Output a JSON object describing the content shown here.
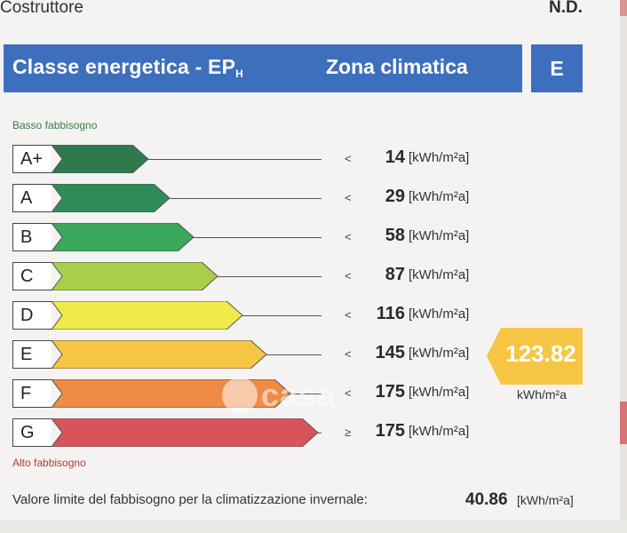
{
  "top": {
    "label": "Costruttore",
    "value": "N.D."
  },
  "header": {
    "title": "Classe energetica - EP",
    "title_sub": "H",
    "zona_label": "Zona climatica",
    "zona_value": "E"
  },
  "scale": {
    "top_label": "Basso fabbisogno",
    "bottom_label": "Alto fabbisogno"
  },
  "classes": [
    {
      "letter": "A+",
      "comparator": "<",
      "limit": "14",
      "unit": "[kWh/m²a]",
      "color": "#2f7a4c",
      "length_fraction": 0.28
    },
    {
      "letter": "A",
      "comparator": "<",
      "limit": "29",
      "unit": "[kWh/m²a]",
      "color": "#2d8c58",
      "length_fraction": 0.34
    },
    {
      "letter": "B",
      "comparator": "<",
      "limit": "58",
      "unit": "[kWh/m²a]",
      "color": "#3aa75a",
      "length_fraction": 0.41
    },
    {
      "letter": "C",
      "comparator": "<",
      "limit": "87",
      "unit": "[kWh/m²a]",
      "color": "#a9cf4a",
      "length_fraction": 0.48
    },
    {
      "letter": "D",
      "comparator": "<",
      "limit": "116",
      "unit": "[kWh/m²a]",
      "color": "#f0ea4a",
      "length_fraction": 0.55
    },
    {
      "letter": "E",
      "comparator": "<",
      "limit": "145",
      "unit": "[kWh/m²a]",
      "color": "#f6c544",
      "length_fraction": 0.62
    },
    {
      "letter": "F",
      "comparator": "<",
      "limit": "175",
      "unit": "[kWh/m²a]",
      "color": "#ef8b45",
      "length_fraction": 0.69
    },
    {
      "letter": "G",
      "comparator": "≥",
      "limit": "175",
      "unit": "[kWh/m²a]",
      "color": "#d8535a",
      "length_fraction": 0.77
    }
  ],
  "indicator": {
    "value": "123.82",
    "unit": "kWh/m²a",
    "color": "#f6c544",
    "class_index": 5
  },
  "watermark": {
    "text": "casa"
  },
  "footer": {
    "label": "Valore limite del fabbisogno per la climatizzazione invernale:",
    "value": "40.86",
    "unit": "[kWh/m²a]"
  }
}
